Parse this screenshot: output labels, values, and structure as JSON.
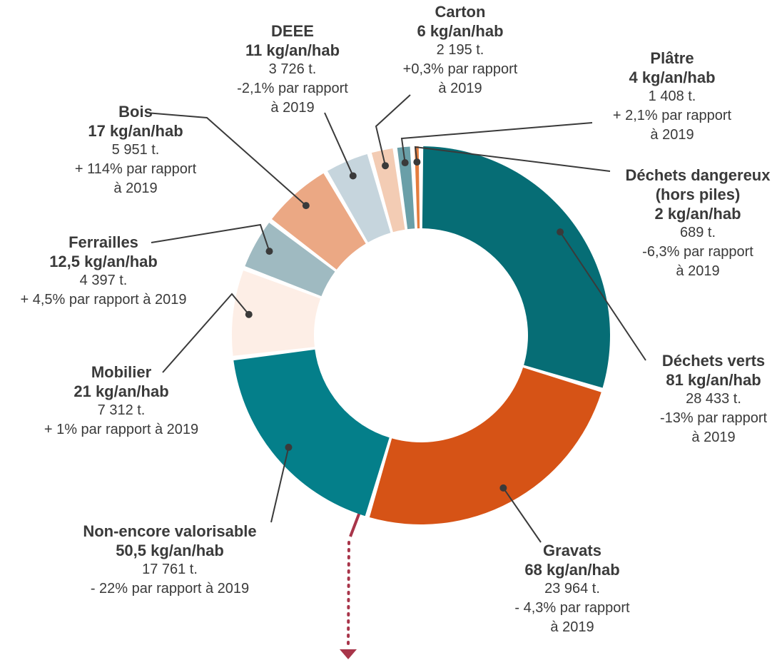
{
  "chart_data": {
    "type": "donut",
    "categories": [
      "Déchets verts",
      "Gravats",
      "Non-encore valorisable",
      "Mobilier",
      "Ferrailles",
      "Bois",
      "DEEE",
      "Carton",
      "Plâtre",
      "Déchets dangereux (hors piles)"
    ],
    "values": [
      81,
      68,
      50.5,
      21,
      12.5,
      17,
      11,
      6,
      4,
      2
    ],
    "value_labels": [
      "81 kg/an/hab",
      "68 kg/an/hab",
      "50,5 kg/an/hab",
      "21 kg/an/hab",
      "12,5 kg/an/hab",
      "17 kg/an/hab",
      "11 kg/an/hab",
      "6 kg/an/hab",
      "4 kg/an/hab",
      "2 kg/an/hab"
    ],
    "tonnages": [
      "28 433 t.",
      "23 964 t.",
      "17 761 t.",
      "7 312 t.",
      "4 397 t.",
      "5 951 t.",
      "3 726 t.",
      "2 195 t.",
      "1 408 t.",
      "689 t."
    ],
    "changes": [
      [
        "-13% par rapport",
        "à 2019"
      ],
      [
        "- 4,3% par rapport",
        "à 2019"
      ],
      [
        "- 22% par rapport à 2019"
      ],
      [
        "+ 1% par rapport à 2019"
      ],
      [
        "+ 4,5% par rapport à 2019"
      ],
      [
        "+ 114% par rapport",
        "à 2019"
      ],
      [
        "-2,1% par rapport",
        "à 2019"
      ],
      [
        "+0,3% par rapport",
        "à 2019"
      ],
      [
        "+ 2,1% par rapport",
        "à 2019"
      ],
      [
        "-6,3% par rapport",
        "à 2019"
      ]
    ],
    "colors": [
      "#066d75",
      "#d65316",
      "#047f8a",
      "#fdeee6",
      "#9fbac1",
      "#eba884",
      "#c6d5dd",
      "#f3ccb4",
      "#6a9fa8",
      "#e47d3e"
    ]
  }
}
